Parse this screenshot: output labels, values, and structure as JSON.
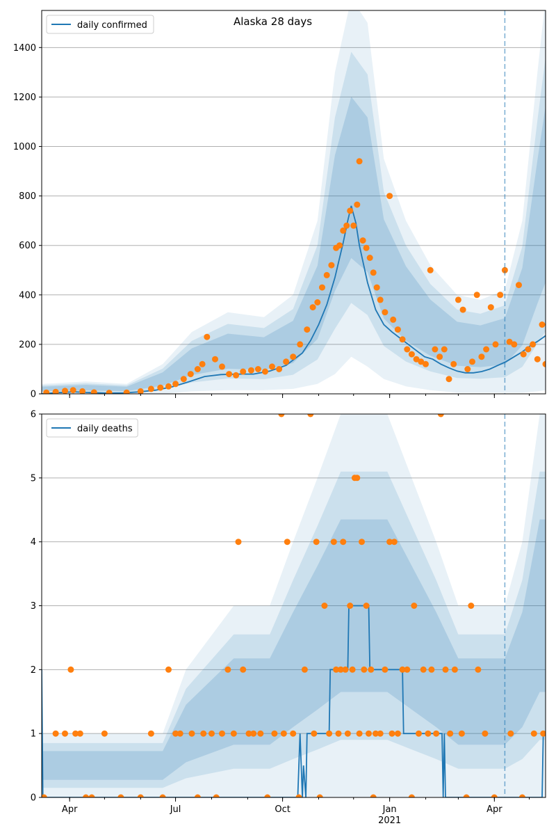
{
  "chart_data": [
    {
      "type": "line",
      "title": "Alaska 28 days",
      "legend": {
        "entries": [
          "daily confirmed"
        ],
        "placement": "top-left"
      },
      "ylim": [
        0,
        1550
      ],
      "yticks": [
        "0",
        "200",
        "400",
        "600",
        "800",
        "1000",
        "1200",
        "1400"
      ],
      "ytick_values": [
        0,
        200,
        400,
        600,
        800,
        1000,
        1200,
        1400
      ],
      "xlim": [
        "2020-03-08",
        "2021-05-15"
      ],
      "xticks": [
        {
          "date": "2020-04-01",
          "label": "Apr"
        },
        {
          "date": "2020-07-01",
          "label": "Jul"
        },
        {
          "date": "2020-10-01",
          "label": "Oct"
        },
        {
          "date": "2021-01-01",
          "label": "Jan"
        },
        {
          "date": "2021-04-01",
          "label": "Apr"
        }
      ],
      "year_label": "2021",
      "forecast_start": "2021-04-10",
      "grid": "horizontal",
      "colors": {
        "line": "#1f77b4",
        "points": "#ff7f0e",
        "band": "#1f77b4",
        "vline": "#1f77b4"
      },
      "series": [
        {
          "name": "daily confirmed",
          "style": "line",
          "x": [
            "2020-03-08",
            "2020-03-22",
            "2020-04-05",
            "2020-04-19",
            "2020-05-03",
            "2020-05-17",
            "2020-05-31",
            "2020-06-14",
            "2020-06-28",
            "2020-07-12",
            "2020-07-26",
            "2020-08-09",
            "2020-08-23",
            "2020-09-06",
            "2020-09-20",
            "2020-10-04",
            "2020-10-18",
            "2020-10-25",
            "2020-11-01",
            "2020-11-08",
            "2020-11-15",
            "2020-11-22",
            "2020-11-26",
            "2020-11-29",
            "2020-12-03",
            "2020-12-06",
            "2020-12-13",
            "2020-12-20",
            "2020-12-27",
            "2021-01-03",
            "2021-01-10",
            "2021-01-17",
            "2021-01-24",
            "2021-01-31",
            "2021-02-07",
            "2021-02-14",
            "2021-02-21",
            "2021-02-28",
            "2021-03-07",
            "2021-03-14",
            "2021-03-21",
            "2021-03-28",
            "2021-04-04",
            "2021-04-11",
            "2021-04-18",
            "2021-04-25",
            "2021-05-02",
            "2021-05-09",
            "2021-05-15"
          ],
          "y": [
            0,
            5,
            8,
            5,
            3,
            4,
            8,
            15,
            28,
            48,
            70,
            78,
            80,
            80,
            92,
            115,
            165,
            215,
            280,
            360,
            470,
            610,
            700,
            760,
            690,
            600,
            450,
            340,
            280,
            250,
            225,
            200,
            175,
            150,
            140,
            120,
            105,
            92,
            85,
            85,
            90,
            100,
            115,
            130,
            150,
            170,
            195,
            215,
            235
          ]
        },
        {
          "name": "",
          "style": "points",
          "x": [
            "2020-03-12",
            "2020-03-20",
            "2020-03-28",
            "2020-04-04",
            "2020-04-12",
            "2020-04-22",
            "2020-05-05",
            "2020-05-20",
            "2020-06-01",
            "2020-06-10",
            "2020-06-18",
            "2020-06-25",
            "2020-07-01",
            "2020-07-08",
            "2020-07-14",
            "2020-07-20",
            "2020-07-24",
            "2020-07-28",
            "2020-08-04",
            "2020-08-10",
            "2020-08-16",
            "2020-08-22",
            "2020-08-28",
            "2020-09-04",
            "2020-09-10",
            "2020-09-16",
            "2020-09-22",
            "2020-09-28",
            "2020-10-04",
            "2020-10-10",
            "2020-10-16",
            "2020-10-22",
            "2020-10-27",
            "2020-10-31",
            "2020-11-04",
            "2020-11-08",
            "2020-11-12",
            "2020-11-16",
            "2020-11-19",
            "2020-11-22",
            "2020-11-25",
            "2020-11-28",
            "2020-12-01",
            "2020-12-04",
            "2020-12-06",
            "2020-12-09",
            "2020-12-12",
            "2020-12-15",
            "2020-12-18",
            "2020-12-21",
            "2020-12-24",
            "2020-12-28",
            "2021-01-01",
            "2021-01-04",
            "2021-01-08",
            "2021-01-12",
            "2021-01-16",
            "2021-01-20",
            "2021-01-24",
            "2021-01-28",
            "2021-02-01",
            "2021-02-05",
            "2021-02-09",
            "2021-02-13",
            "2021-02-17",
            "2021-02-21",
            "2021-02-25",
            "2021-03-01",
            "2021-03-05",
            "2021-03-09",
            "2021-03-13",
            "2021-03-17",
            "2021-03-21",
            "2021-03-25",
            "2021-03-29",
            "2021-04-02",
            "2021-04-06",
            "2021-04-10",
            "2021-04-14",
            "2021-04-18",
            "2021-04-22",
            "2021-04-26",
            "2021-04-30",
            "2021-05-04",
            "2021-05-08",
            "2021-05-12",
            "2021-05-15"
          ],
          "y": [
            5,
            8,
            12,
            15,
            10,
            6,
            4,
            5,
            10,
            20,
            25,
            30,
            40,
            60,
            80,
            100,
            120,
            230,
            140,
            110,
            80,
            75,
            90,
            95,
            100,
            90,
            110,
            100,
            130,
            150,
            200,
            260,
            350,
            370,
            430,
            480,
            520,
            590,
            600,
            660,
            680,
            740,
            680,
            765,
            940,
            620,
            590,
            550,
            490,
            430,
            380,
            330,
            800,
            300,
            260,
            220,
            180,
            160,
            140,
            130,
            120,
            500,
            180,
            150,
            180,
            60,
            120,
            380,
            340,
            100,
            130,
            400,
            150,
            180,
            350,
            200,
            400,
            500,
            210,
            200,
            440,
            160,
            180,
            200,
            140,
            280,
            120
          ]
        },
        {
          "name": "",
          "style": "band",
          "x": [
            "2020-03-08",
            "2020-04-15",
            "2020-05-20",
            "2020-06-20",
            "2020-07-15",
            "2020-08-15",
            "2020-09-15",
            "2020-10-10",
            "2020-10-31",
            "2020-11-15",
            "2020-11-29",
            "2020-12-13",
            "2020-12-27",
            "2021-01-15",
            "2021-02-05",
            "2021-02-28",
            "2021-03-20",
            "2021-04-10",
            "2021-04-25",
            "2021-05-08",
            "2021-05-15"
          ],
          "lower": [
            0,
            0,
            0,
            0,
            10,
            15,
            15,
            20,
            40,
            80,
            150,
            110,
            60,
            30,
            15,
            5,
            5,
            5,
            5,
            10,
            15
          ],
          "upper": [
            40,
            50,
            40,
            120,
            250,
            330,
            310,
            400,
            700,
            1300,
            1600,
            1500,
            950,
            700,
            520,
            400,
            380,
            420,
            700,
            1300,
            1600
          ]
        }
      ]
    },
    {
      "type": "line",
      "title": "",
      "legend": {
        "entries": [
          "daily deaths"
        ],
        "placement": "top-left"
      },
      "ylim": [
        0,
        6
      ],
      "yticks": [
        "0",
        "1",
        "2",
        "3",
        "4",
        "5",
        "6"
      ],
      "ytick_values": [
        0,
        1,
        2,
        3,
        4,
        5,
        6
      ],
      "xlim": [
        "2020-03-08",
        "2021-05-15"
      ],
      "xticks": [
        {
          "date": "2020-04-01",
          "label": "Apr"
        },
        {
          "date": "2020-07-01",
          "label": "Jul"
        },
        {
          "date": "2020-10-01",
          "label": "Oct"
        },
        {
          "date": "2021-01-01",
          "label": "Jan"
        },
        {
          "date": "2021-04-01",
          "label": "Apr"
        }
      ],
      "year_label": "2021",
      "forecast_start": "2021-04-10",
      "grid": "horizontal",
      "colors": {
        "line": "#1f77b4",
        "points": "#ff7f0e",
        "band": "#1f77b4",
        "vline": "#1f77b4"
      },
      "series": [
        {
          "name": "daily deaths",
          "style": "line",
          "x": [
            "2020-03-08",
            "2020-03-09",
            "2020-10-14",
            "2020-10-16",
            "2020-10-18",
            "2020-10-19",
            "2020-10-21",
            "2020-10-22",
            "2020-11-10",
            "2020-11-11",
            "2020-11-26",
            "2020-11-27",
            "2020-12-14",
            "2020-12-15",
            "2020-12-28",
            "2021-01-12",
            "2021-01-13",
            "2021-02-15",
            "2021-02-16",
            "2021-02-17",
            "2021-02-18",
            "2021-05-12",
            "2021-05-13",
            "2021-05-15"
          ],
          "y": [
            2,
            0,
            0,
            1,
            0,
            0.5,
            0,
            1,
            1,
            2,
            2,
            3,
            3,
            2,
            2,
            2,
            1,
            1,
            0,
            1,
            0,
            0,
            1,
            1
          ]
        },
        {
          "name": "",
          "style": "points",
          "x": [
            "2020-03-10",
            "2020-03-20",
            "2020-03-28",
            "2020-04-02",
            "2020-04-06",
            "2020-04-10",
            "2020-04-15",
            "2020-04-20",
            "2020-05-01",
            "2020-05-15",
            "2020-06-01",
            "2020-06-10",
            "2020-06-20",
            "2020-06-25",
            "2020-07-01",
            "2020-07-05",
            "2020-07-15",
            "2020-07-20",
            "2020-07-25",
            "2020-08-01",
            "2020-08-05",
            "2020-08-10",
            "2020-08-15",
            "2020-08-20",
            "2020-08-24",
            "2020-08-28",
            "2020-09-02",
            "2020-09-06",
            "2020-09-12",
            "2020-09-18",
            "2020-09-24",
            "2020-09-30",
            "2020-10-02",
            "2020-10-05",
            "2020-10-10",
            "2020-10-15",
            "2020-10-20",
            "2020-10-25",
            "2020-10-28",
            "2020-10-30",
            "2020-11-02",
            "2020-11-06",
            "2020-11-10",
            "2020-11-14",
            "2020-11-16",
            "2020-11-18",
            "2020-11-20",
            "2020-11-22",
            "2020-11-24",
            "2020-11-26",
            "2020-11-28",
            "2020-11-30",
            "2020-12-02",
            "2020-12-04",
            "2020-12-06",
            "2020-12-08",
            "2020-12-10",
            "2020-12-12",
            "2020-12-14",
            "2020-12-16",
            "2020-12-18",
            "2020-12-20",
            "2020-12-24",
            "2020-12-28",
            "2021-01-01",
            "2021-01-03",
            "2021-01-05",
            "2021-01-08",
            "2021-01-12",
            "2021-01-16",
            "2021-01-20",
            "2021-01-22",
            "2021-01-26",
            "2021-01-30",
            "2021-02-03",
            "2021-02-06",
            "2021-02-10",
            "2021-02-14",
            "2021-02-18",
            "2021-02-22",
            "2021-02-26",
            "2021-03-04",
            "2021-03-08",
            "2021-03-12",
            "2021-03-18",
            "2021-03-24",
            "2021-04-01",
            "2021-04-15",
            "2021-04-25",
            "2021-05-05",
            "2021-05-13"
          ],
          "y": [
            0,
            1,
            1,
            2,
            1,
            1,
            0,
            0,
            1,
            0,
            0,
            1,
            0,
            2,
            1,
            1,
            1,
            0,
            1,
            1,
            0,
            1,
            2,
            1,
            4,
            2,
            1,
            1,
            1,
            0,
            1,
            6,
            1,
            4,
            1,
            0,
            2,
            6,
            1,
            4,
            0,
            3,
            1,
            4,
            2,
            1,
            2,
            4,
            2,
            1,
            3,
            2,
            5,
            5,
            1,
            4,
            2,
            3,
            1,
            2,
            0,
            1,
            1,
            2,
            4,
            1,
            4,
            1,
            2,
            2,
            0,
            3,
            1,
            2,
            1,
            2,
            1,
            6,
            2,
            1,
            2,
            1,
            0,
            3,
            2,
            1,
            0,
            1,
            0,
            1,
            1
          ]
        },
        {
          "name": "",
          "style": "band",
          "x": [
            "2020-03-08",
            "2020-04-20",
            "2020-06-20",
            "2020-07-10",
            "2020-08-20",
            "2020-09-20",
            "2020-10-10",
            "2020-10-31",
            "2020-11-20",
            "2020-12-10",
            "2020-12-30",
            "2021-01-20",
            "2021-02-10",
            "2021-03-01",
            "2021-03-20",
            "2021-04-10",
            "2021-04-25",
            "2021-05-10",
            "2021-05-15"
          ],
          "lower": [
            0,
            0,
            0,
            0,
            0,
            0,
            0,
            0,
            0,
            0,
            0,
            0,
            0,
            0,
            0,
            0,
            0,
            0,
            0
          ],
          "upper": [
            1,
            1,
            1,
            2,
            3,
            3,
            4,
            5,
            6,
            6,
            6,
            5,
            4,
            3,
            3,
            3,
            4,
            6,
            6
          ]
        }
      ]
    }
  ]
}
